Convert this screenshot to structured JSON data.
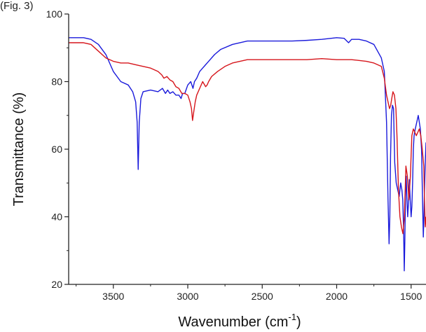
{
  "page": {
    "fragment_text": "(Fig. 3)"
  },
  "chart_data": {
    "type": "line",
    "title": "",
    "xlabel": "Wavenumber (cm",
    "xlabel_sup": "-1",
    "xlabel_suffix": ")",
    "ylabel": "Transmittance (%)",
    "xlim": [
      3800,
      1400
    ],
    "ylim": [
      20,
      100
    ],
    "x_reversed": true,
    "x_ticks": [
      3500,
      3000,
      2500,
      2000,
      1500
    ],
    "y_ticks": [
      20,
      40,
      60,
      80,
      100
    ],
    "grid": false,
    "legend": "none",
    "series": [
      {
        "color": "#1a1adb",
        "x": [
          3800,
          3700,
          3650,
          3600,
          3550,
          3500,
          3450,
          3400,
          3370,
          3350,
          3340,
          3333,
          3326,
          3315,
          3300,
          3250,
          3200,
          3170,
          3150,
          3135,
          3120,
          3100,
          3080,
          3060,
          3045,
          3035,
          3020,
          3000,
          2980,
          2965,
          2955,
          2940,
          2920,
          2900,
          2880,
          2860,
          2820,
          2780,
          2700,
          2600,
          2500,
          2400,
          2300,
          2200,
          2100,
          2000,
          1950,
          1920,
          1900,
          1850,
          1800,
          1750,
          1700,
          1680,
          1665,
          1655,
          1648,
          1643,
          1638,
          1632,
          1625,
          1618,
          1610,
          1600,
          1590,
          1580,
          1570,
          1562,
          1556,
          1550,
          1546,
          1542,
          1538,
          1533,
          1528,
          1523,
          1518,
          1512,
          1506,
          1500,
          1495,
          1490,
          1485,
          1480,
          1472,
          1462,
          1452,
          1445,
          1438,
          1430,
          1422,
          1418,
          1414,
          1410,
          1405,
          1400
        ],
        "y": [
          93,
          93,
          92.5,
          91,
          88,
          83,
          80,
          79,
          77,
          74,
          68,
          54,
          68,
          75,
          77,
          77.5,
          77,
          78,
          76.5,
          77.5,
          76.5,
          77,
          76,
          76,
          75,
          76.5,
          76.5,
          79,
          80,
          78,
          80,
          81,
          83,
          84,
          85,
          86,
          88,
          89.5,
          91,
          92,
          92,
          92,
          92,
          92.2,
          92.5,
          93,
          92.8,
          91.5,
          92.5,
          92.5,
          92,
          91,
          87,
          83,
          68,
          45,
          32,
          40,
          58,
          70,
          73,
          72,
          56,
          50,
          48,
          46,
          50,
          48,
          45,
          35,
          24,
          33,
          46,
          52,
          45,
          40,
          44,
          51,
          45,
          40,
          43,
          50,
          60,
          64,
          66,
          68,
          70,
          68,
          66,
          60,
          42,
          34,
          40,
          48,
          56,
          62
        ]
      },
      {
        "color": "#d6151b",
        "x": [
          3800,
          3700,
          3650,
          3600,
          3550,
          3500,
          3450,
          3400,
          3350,
          3300,
          3250,
          3200,
          3175,
          3160,
          3140,
          3120,
          3100,
          3080,
          3060,
          3040,
          3020,
          3000,
          2985,
          2975,
          2968,
          2960,
          2950,
          2940,
          2920,
          2900,
          2880,
          2870,
          2860,
          2840,
          2800,
          2750,
          2700,
          2600,
          2500,
          2400,
          2300,
          2200,
          2100,
          2000,
          1900,
          1800,
          1750,
          1700,
          1680,
          1665,
          1655,
          1645,
          1637,
          1630,
          1622,
          1612,
          1602,
          1595,
          1585,
          1575,
          1565,
          1555,
          1545,
          1535,
          1525,
          1515,
          1505,
          1495,
          1485,
          1475,
          1465,
          1455,
          1445,
          1435,
          1425,
          1415,
          1410,
          1405,
          1400
        ],
        "y": [
          91.5,
          91.5,
          91,
          89,
          87,
          86,
          85.5,
          85.5,
          85,
          84.5,
          84,
          83,
          82,
          81,
          81.5,
          80.5,
          80,
          78.5,
          78,
          76.5,
          76.5,
          76,
          74,
          72,
          68.5,
          71,
          74,
          76,
          78,
          80,
          78.5,
          79,
          80,
          81.5,
          83,
          84.5,
          85.5,
          86.5,
          86.5,
          86.5,
          86.5,
          86.5,
          86.8,
          86.5,
          86.5,
          86,
          85.5,
          84.5,
          81,
          76,
          74,
          72,
          73,
          75,
          77,
          76,
          72,
          64,
          48,
          40,
          37,
          35,
          40,
          55,
          52,
          45,
          52,
          64,
          66,
          65,
          64,
          65,
          66,
          64,
          60,
          55,
          45,
          37,
          40
        ]
      }
    ]
  }
}
